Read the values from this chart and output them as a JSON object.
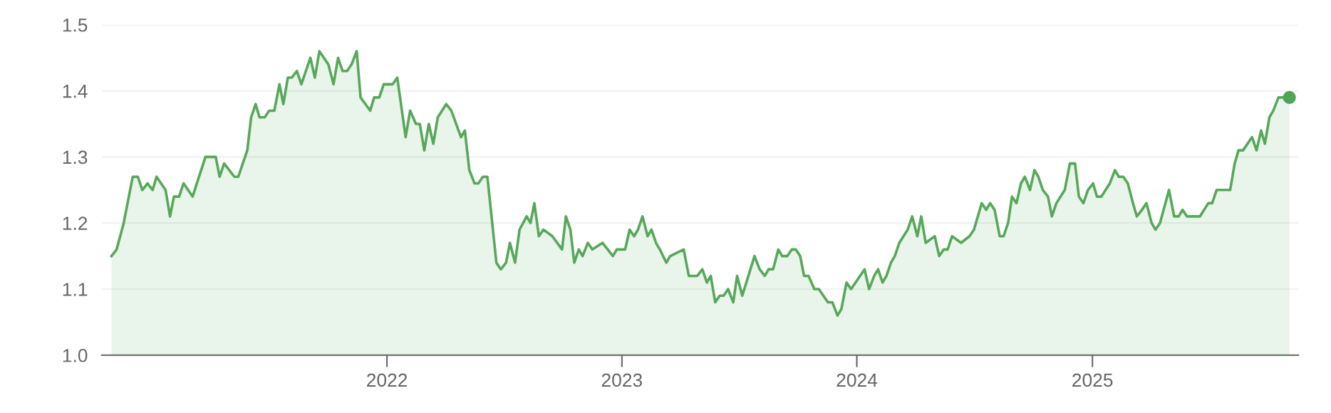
{
  "chart_data": {
    "type": "area",
    "xlim": [
      "2020-10-15",
      "2025-11-17"
    ],
    "ylim": [
      1.0,
      1.5
    ],
    "xticks": [
      {
        "value": "2022-01-01",
        "label": "2022"
      },
      {
        "value": "2023-01-01",
        "label": "2023"
      },
      {
        "value": "2024-01-01",
        "label": "2024"
      },
      {
        "value": "2025-01-01",
        "label": "2025"
      }
    ],
    "yticks": [
      {
        "value": 1,
        "label": "1.0"
      },
      1.1,
      1.2,
      1.3,
      1.4,
      1.5
    ],
    "grid": "y",
    "marker": "none",
    "line_style": "solid",
    "series": [
      {
        "color": "#57a85a",
        "x": [
          "2020-10-30",
          "2020-11-07",
          "2020-11-18",
          "2020-12-02",
          "2020-12-10",
          "2020-12-17",
          "2020-12-25",
          "2021-01-02",
          "2021-01-08",
          "2021-01-22",
          "2021-01-29",
          "2021-02-04",
          "2021-02-12",
          "2021-02-19",
          "2021-03-05",
          "2021-03-25",
          "2021-04-10",
          "2021-04-16",
          "2021-04-23",
          "2021-05-09",
          "2021-05-15",
          "2021-05-29",
          "2021-06-04",
          "2021-06-11",
          "2021-06-17",
          "2021-06-25",
          "2021-07-02",
          "2021-07-10",
          "2021-07-18",
          "2021-07-24",
          "2021-07-31",
          "2021-08-06",
          "2021-08-14",
          "2021-08-21",
          "2021-09-04",
          "2021-09-11",
          "2021-09-18",
          "2021-10-02",
          "2021-10-10",
          "2021-10-17",
          "2021-10-24",
          "2021-10-31",
          "2021-11-07",
          "2021-11-15",
          "2021-11-21",
          "2021-12-06",
          "2021-12-12",
          "2021-12-20",
          "2021-12-27",
          "2022-01-10",
          "2022-01-17",
          "2022-01-30",
          "2022-02-06",
          "2022-02-15",
          "2022-02-21",
          "2022-02-28",
          "2022-03-07",
          "2022-03-14",
          "2022-03-21",
          "2022-04-03",
          "2022-04-11",
          "2022-04-26",
          "2022-05-02",
          "2022-05-09",
          "2022-05-17",
          "2022-05-23",
          "2022-05-30",
          "2022-06-06",
          "2022-06-20",
          "2022-06-27",
          "2022-07-05",
          "2022-07-11",
          "2022-07-19",
          "2022-07-26",
          "2022-08-06",
          "2022-08-12",
          "2022-08-18",
          "2022-08-25",
          "2022-09-01",
          "2022-09-15",
          "2022-09-30",
          "2022-10-06",
          "2022-10-13",
          "2022-10-19",
          "2022-10-26",
          "2022-11-01",
          "2022-11-09",
          "2022-11-16",
          "2022-12-02",
          "2022-12-18",
          "2022-12-24",
          "2023-01-06",
          "2023-01-13",
          "2023-01-20",
          "2023-01-26",
          "2023-02-02",
          "2023-02-10",
          "2023-02-16",
          "2023-02-23",
          "2023-03-01",
          "2023-03-11",
          "2023-03-17",
          "2023-04-07",
          "2023-04-15",
          "2023-04-28",
          "2023-05-06",
          "2023-05-13",
          "2023-05-19",
          "2023-05-26",
          "2023-06-02",
          "2023-06-08",
          "2023-06-15",
          "2023-06-23",
          "2023-06-29",
          "2023-07-07",
          "2023-07-26",
          "2023-08-03",
          "2023-08-11",
          "2023-08-17",
          "2023-08-24",
          "2023-09-01",
          "2023-09-07",
          "2023-09-15",
          "2023-09-22",
          "2023-09-28",
          "2023-10-05",
          "2023-10-11",
          "2023-10-18",
          "2023-10-27",
          "2023-11-03",
          "2023-11-17",
          "2023-11-24",
          "2023-12-02",
          "2023-12-08",
          "2023-12-16",
          "2023-12-23",
          "2024-01-13",
          "2024-01-20",
          "2024-01-28",
          "2024-02-03",
          "2024-02-10",
          "2024-02-16",
          "2024-02-23",
          "2024-02-29",
          "2024-03-07",
          "2024-03-20",
          "2024-03-27",
          "2024-04-04",
          "2024-04-10",
          "2024-04-17",
          "2024-05-01",
          "2024-05-08",
          "2024-05-15",
          "2024-05-21",
          "2024-05-28",
          "2024-06-11",
          "2024-06-24",
          "2024-07-01",
          "2024-07-13",
          "2024-07-20",
          "2024-07-26",
          "2024-08-02",
          "2024-08-10",
          "2024-08-16",
          "2024-08-23",
          "2024-08-29",
          "2024-09-05",
          "2024-09-12",
          "2024-09-18",
          "2024-09-26",
          "2024-10-03",
          "2024-10-09",
          "2024-10-16",
          "2024-10-24",
          "2024-10-30",
          "2024-11-06",
          "2024-11-19",
          "2024-11-27",
          "2024-12-05",
          "2024-12-11",
          "2024-12-18",
          "2024-12-25",
          "2025-01-02",
          "2025-01-08",
          "2025-01-15",
          "2025-01-28",
          "2025-02-05",
          "2025-02-11",
          "2025-02-18",
          "2025-02-25",
          "2025-03-05",
          "2025-03-11",
          "2025-03-19",
          "2025-03-26",
          "2025-04-03",
          "2025-04-09",
          "2025-04-16",
          "2025-04-30",
          "2025-05-08",
          "2025-05-15",
          "2025-05-21",
          "2025-05-28",
          "2025-06-17",
          "2025-06-30",
          "2025-07-06",
          "2025-07-13",
          "2025-08-03",
          "2025-08-10",
          "2025-08-16",
          "2025-08-23",
          "2025-09-06",
          "2025-09-13",
          "2025-09-20",
          "2025-09-26",
          "2025-10-03",
          "2025-10-09",
          "2025-10-17",
          "2025-11-03"
        ],
        "values": [
          1.15,
          1.16,
          1.2,
          1.27,
          1.27,
          1.25,
          1.26,
          1.25,
          1.27,
          1.25,
          1.21,
          1.24,
          1.24,
          1.26,
          1.24,
          1.3,
          1.3,
          1.27,
          1.29,
          1.27,
          1.27,
          1.31,
          1.36,
          1.38,
          1.36,
          1.36,
          1.37,
          1.37,
          1.41,
          1.38,
          1.42,
          1.42,
          1.43,
          1.41,
          1.45,
          1.42,
          1.46,
          1.44,
          1.41,
          1.45,
          1.43,
          1.43,
          1.44,
          1.46,
          1.39,
          1.37,
          1.39,
          1.39,
          1.41,
          1.41,
          1.42,
          1.33,
          1.37,
          1.35,
          1.35,
          1.31,
          1.35,
          1.32,
          1.36,
          1.38,
          1.37,
          1.33,
          1.34,
          1.28,
          1.26,
          1.26,
          1.27,
          1.27,
          1.14,
          1.13,
          1.14,
          1.17,
          1.14,
          1.19,
          1.21,
          1.2,
          1.23,
          1.18,
          1.19,
          1.18,
          1.16,
          1.21,
          1.19,
          1.14,
          1.16,
          1.15,
          1.17,
          1.16,
          1.17,
          1.15,
          1.16,
          1.16,
          1.19,
          1.18,
          1.19,
          1.21,
          1.18,
          1.19,
          1.17,
          1.16,
          1.14,
          1.15,
          1.16,
          1.12,
          1.12,
          1.13,
          1.11,
          1.12,
          1.08,
          1.09,
          1.09,
          1.1,
          1.08,
          1.12,
          1.09,
          1.15,
          1.13,
          1.12,
          1.13,
          1.13,
          1.16,
          1.15,
          1.15,
          1.16,
          1.16,
          1.15,
          1.12,
          1.12,
          1.1,
          1.1,
          1.08,
          1.08,
          1.06,
          1.07,
          1.11,
          1.1,
          1.13,
          1.1,
          1.12,
          1.13,
          1.11,
          1.12,
          1.14,
          1.15,
          1.17,
          1.19,
          1.21,
          1.18,
          1.21,
          1.17,
          1.18,
          1.15,
          1.16,
          1.16,
          1.18,
          1.17,
          1.18,
          1.19,
          1.23,
          1.22,
          1.23,
          1.22,
          1.18,
          1.18,
          1.2,
          1.24,
          1.23,
          1.26,
          1.27,
          1.25,
          1.28,
          1.27,
          1.25,
          1.24,
          1.21,
          1.23,
          1.25,
          1.29,
          1.29,
          1.24,
          1.23,
          1.25,
          1.26,
          1.24,
          1.24,
          1.26,
          1.28,
          1.27,
          1.27,
          1.26,
          1.23,
          1.21,
          1.22,
          1.23,
          1.2,
          1.19,
          1.2,
          1.25,
          1.21,
          1.21,
          1.22,
          1.21,
          1.21,
          1.23,
          1.23,
          1.25,
          1.25,
          1.29,
          1.31,
          1.31,
          1.33,
          1.31,
          1.34,
          1.32,
          1.36,
          1.37,
          1.39,
          1.39
        ]
      },
      {
        "type": "scatter",
        "marker": "circle",
        "color": "#52a456",
        "x": [
          "2025-11-03"
        ],
        "values": [
          1.39
        ]
      }
    ]
  }
}
